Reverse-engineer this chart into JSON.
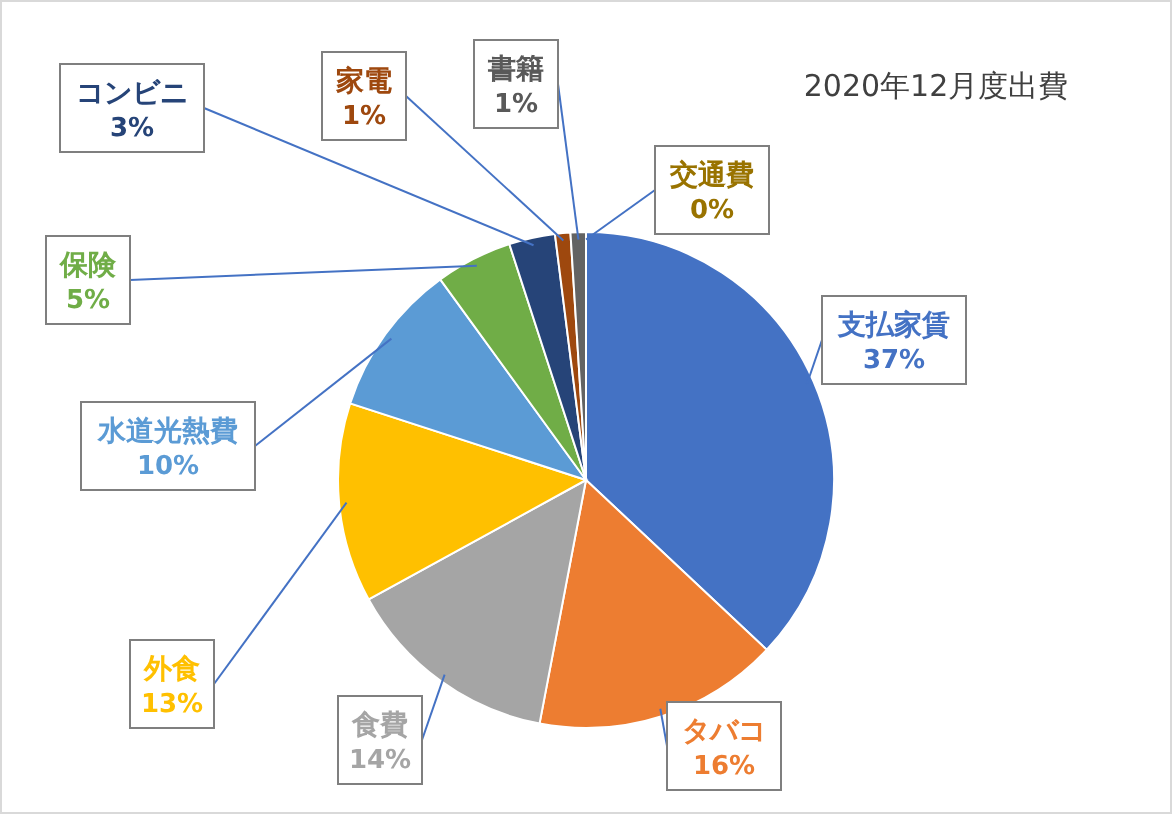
{
  "chart_data": {
    "type": "pie",
    "title": "2020年12月度出費",
    "categories": [
      "支払家賃",
      "タバコ",
      "食費",
      "外食",
      "水道光熱費",
      "保険",
      "コンビニ",
      "家電",
      "書籍",
      "交通費"
    ],
    "values": [
      37,
      16,
      14,
      13,
      10,
      5,
      3,
      1,
      1,
      0
    ],
    "colors": [
      "#4472c4",
      "#ed7d31",
      "#a5a5a5",
      "#ffc000",
      "#5b9bd5",
      "#70ad47",
      "#264478",
      "#9e480e",
      "#636363",
      "#997300"
    ],
    "value_labels": [
      "37%",
      "16%",
      "14%",
      "13%",
      "10%",
      "5%",
      "3%",
      "1%",
      "1%",
      "0%"
    ]
  }
}
